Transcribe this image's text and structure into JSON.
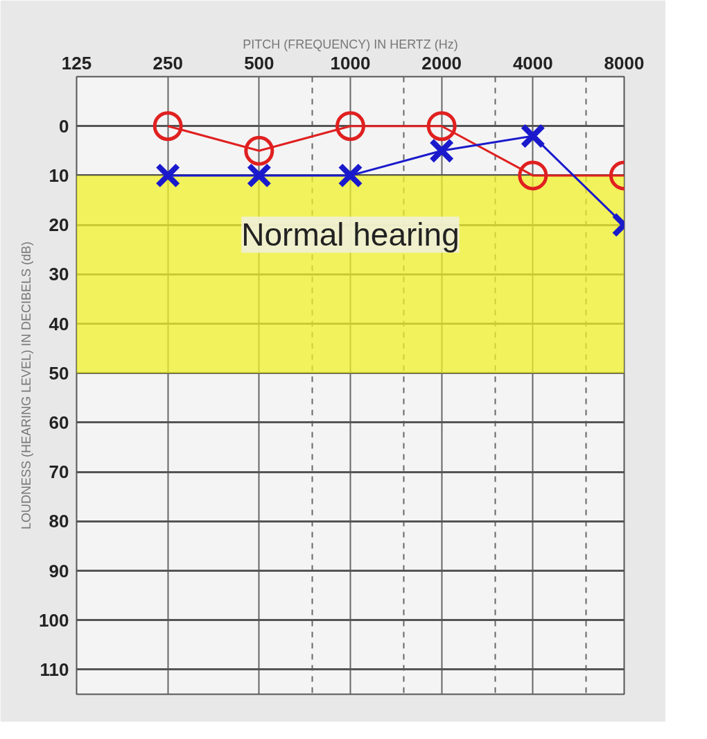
{
  "chart_data": {
    "type": "line",
    "xlabel": "PITCH (FREQUENCY) IN HERTZ (Hz)",
    "ylabel": "LOUDNESS (HEARING LEVEL) IN DECIBELS (dB)",
    "log": "x",
    "x": [
      250,
      500,
      1000,
      2000,
      4000,
      8000
    ],
    "series": [
      {
        "color": "#e02020",
        "marker": "circle",
        "values": [
          0,
          5,
          0,
          0,
          10,
          10
        ]
      },
      {
        "color": "#1a1acc",
        "marker": "cross",
        "values": [
          10,
          10,
          10,
          5,
          2,
          20
        ]
      }
    ],
    "xlim": [
      125,
      8000
    ],
    "xticks": [
      125,
      250,
      500,
      {
        "value": 750,
        "label": null
      },
      1000,
      {
        "value": 1500,
        "label": null
      },
      2000,
      {
        "value": 3000,
        "label": null
      },
      4000,
      {
        "value": 6000,
        "label": null
      },
      8000
    ],
    "ylim": [
      115,
      -10
    ],
    "yticks": [
      0,
      10,
      20,
      30,
      40,
      50,
      60,
      70,
      80,
      90,
      100,
      110
    ],
    "grid": true,
    "bands": [
      {
        "axis": "y",
        "from": 10,
        "to": 50,
        "label": "Normal hearing",
        "color": "#f2f22a"
      }
    ]
  }
}
